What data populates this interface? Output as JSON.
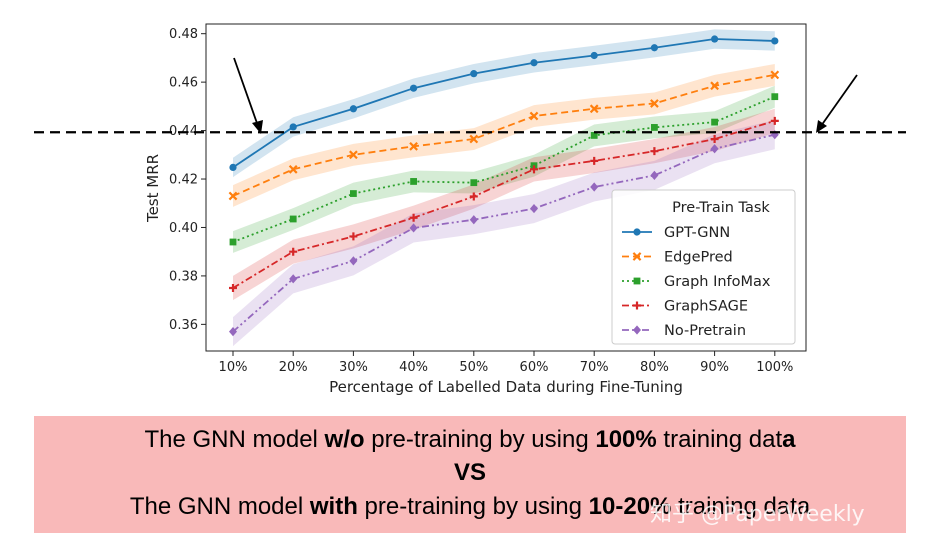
{
  "chart_data": {
    "type": "line",
    "xlabel": "Percentage of Labelled Data during Fine-Tuning",
    "ylabel": "Test MRR",
    "categories": [
      "10%",
      "20%",
      "30%",
      "40%",
      "50%",
      "60%",
      "70%",
      "80%",
      "90%",
      "100%"
    ],
    "ylim": [
      0.349,
      0.484
    ],
    "yticks": [
      "0.36",
      "0.38",
      "0.40",
      "0.42",
      "0.44",
      "0.46",
      "0.48"
    ],
    "grid": false,
    "reference_line": 0.4393,
    "legend": {
      "title": "Pre-Train Task",
      "placement": "lower-right"
    },
    "series": [
      {
        "name": "GPT-GNN",
        "color": "#1f77b4",
        "marker": "circle",
        "dash": "solid",
        "values": [
          0.4248,
          0.4415,
          0.449,
          0.4575,
          0.4635,
          0.468,
          0.471,
          0.4742,
          0.4778,
          0.477
        ],
        "band": 0.004
      },
      {
        "name": "EdgePred",
        "color": "#ff7f0e",
        "marker": "x",
        "dash": "dashed",
        "values": [
          0.413,
          0.424,
          0.43,
          0.4335,
          0.4365,
          0.446,
          0.449,
          0.4512,
          0.4585,
          0.463
        ],
        "band": 0.0045
      },
      {
        "name": "Graph InfoMax",
        "color": "#2ca02c",
        "marker": "square",
        "dash": "dotted",
        "values": [
          0.394,
          0.4035,
          0.414,
          0.419,
          0.4185,
          0.4255,
          0.438,
          0.4413,
          0.4435,
          0.454
        ],
        "band": 0.0045
      },
      {
        "name": "GraphSAGE",
        "color": "#d62728",
        "marker": "plus",
        "dash": "dashdot",
        "values": [
          0.375,
          0.39,
          0.3963,
          0.404,
          0.4128,
          0.424,
          0.4275,
          0.4315,
          0.4365,
          0.444
        ],
        "band": 0.005
      },
      {
        "name": "No-Pretrain",
        "color": "#9467bd",
        "marker": "diamond",
        "dash": "dashdotdot",
        "values": [
          0.357,
          0.3788,
          0.3862,
          0.3998,
          0.4032,
          0.4078,
          0.4167,
          0.4215,
          0.4325,
          0.4383
        ],
        "band": 0.006
      }
    ]
  },
  "caption": {
    "line1": {
      "before": "The GNN model ",
      "bold1": "w/o",
      "middle": " pre-training by using ",
      "bold2": "100%",
      "after": " training dat",
      "bold3": "a"
    },
    "line2": "VS",
    "line3": {
      "before": "The GNN model ",
      "bold1": "with",
      "middle": " pre-training by using ",
      "bold2": "10-20%",
      "after": " training data"
    }
  },
  "watermark": "知乎 @PaperWeekly"
}
